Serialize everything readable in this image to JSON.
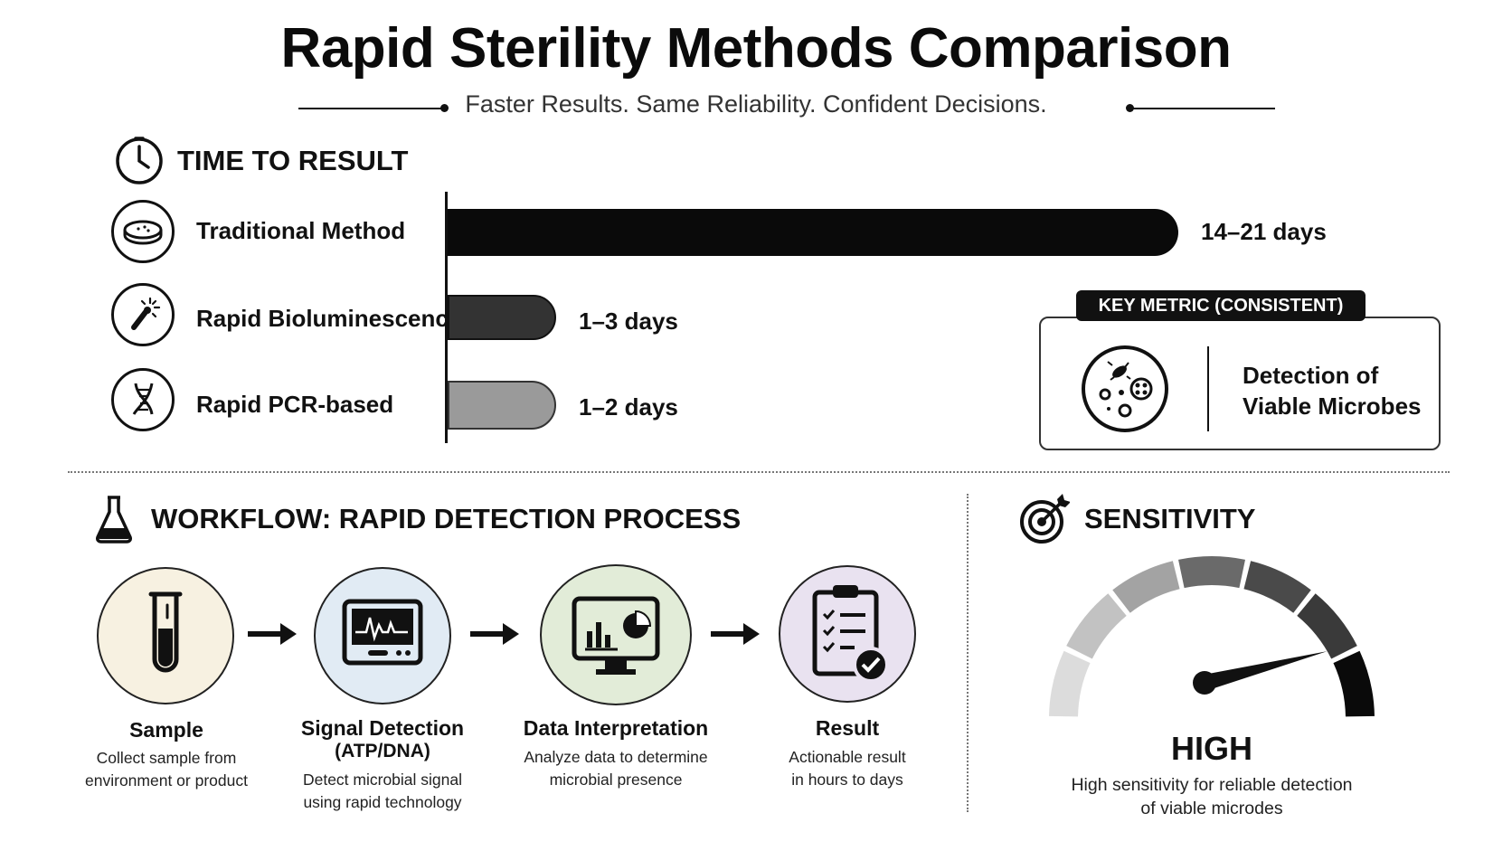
{
  "header": {
    "title": "Rapid Sterility Methods Comparison",
    "subtitle": "Faster Results. Same Reliability. Confident Decisions."
  },
  "time_section": {
    "title": "TIME TO RESULT",
    "icon": "clock-icon"
  },
  "chart_data": {
    "type": "bar",
    "orientation": "horizontal",
    "categories": [
      "Traditional Method",
      "Rapid Bioluminescence",
      "Rapid PCR-based"
    ],
    "values_days_max": [
      21,
      3,
      2
    ],
    "values_days_min": [
      14,
      1,
      1
    ],
    "data_labels": [
      "14–21 days",
      "1–3 days",
      "1–2 days"
    ],
    "colors": [
      "#0a0a0a",
      "#333333",
      "#9a9a9a"
    ],
    "icons": [
      "petri-dish-icon",
      "bioluminescence-swab-icon",
      "dna-helix-icon"
    ],
    "grid": false,
    "legend": "none"
  },
  "key_metric": {
    "tag": "KEY METRIC (CONSISTENT)",
    "line1": "Detection of",
    "line2": "Viable Microbes",
    "icon": "microbes-petri-icon"
  },
  "workflow": {
    "title": "WORKFLOW: RAPID DETECTION PROCESS",
    "icon": "flask-icon",
    "steps": [
      {
        "title": "Sample",
        "title2": "",
        "desc1": "Collect sample from",
        "desc2": "environment or product",
        "icon": "test-tube-icon",
        "color": "#f7f1e1"
      },
      {
        "title": "Signal Detection",
        "title2": "(ATP/DNA)",
        "desc1": "Detect microbial signal",
        "desc2": "using rapid technology",
        "icon": "signal-monitor-icon",
        "color": "#e1ebf4"
      },
      {
        "title": "Data Interpretation",
        "title2": "",
        "desc1": "Analyze data to determine",
        "desc2": "microbial presence",
        "icon": "analytics-monitor-icon",
        "color": "#e2ecd8"
      },
      {
        "title": "Result",
        "title2": "",
        "desc1": "Actionable result",
        "desc2": "in hours to days",
        "icon": "clipboard-check-icon",
        "color": "#e9e2f0"
      }
    ]
  },
  "sensitivity": {
    "title": "SENSITIVITY",
    "icon": "target-icon",
    "level": "HIGH",
    "level_fraction": 0.92,
    "desc1": "High sensitivity for reliable detection",
    "desc2": "of viable microdes"
  }
}
